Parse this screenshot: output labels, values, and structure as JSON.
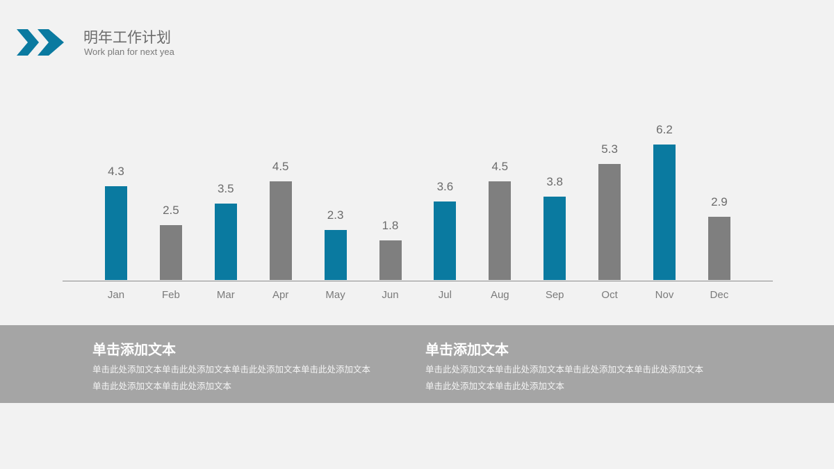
{
  "header": {
    "title": "明年工作计划",
    "subtitle": "Work plan for next yea",
    "logo_icon": "double-chevron-right-icon",
    "accent_color": "#0a7aa0"
  },
  "chart_data": {
    "type": "bar",
    "title": "",
    "xlabel": "",
    "ylabel": "",
    "categories": [
      "Jan",
      "Feb",
      "Mar",
      "Apr",
      "May",
      "Jun",
      "Jul",
      "Aug",
      "Sep",
      "Oct",
      "Nov",
      "Dec"
    ],
    "values": [
      4.3,
      2.5,
      3.5,
      4.5,
      2.3,
      1.8,
      3.6,
      4.5,
      3.8,
      5.3,
      6.2,
      2.9
    ],
    "value_labels": [
      "4.3",
      "2.5",
      "3.5",
      "4.5",
      "2.3",
      "1.8",
      "3.6",
      "4.5",
      "3.8",
      "5.3",
      "6.2",
      "2.9"
    ],
    "bar_colors": [
      "#0a7aa0",
      "#7f7f7f",
      "#0a7aa0",
      "#7f7f7f",
      "#0a7aa0",
      "#7f7f7f",
      "#0a7aa0",
      "#7f7f7f",
      "#0a7aa0",
      "#7f7f7f",
      "#0a7aa0",
      "#7f7f7f"
    ],
    "ylim": [
      0,
      7
    ],
    "grid": false,
    "legend": "none",
    "data_labels": true
  },
  "footer": {
    "blocks": [
      {
        "heading": "单击添加文本",
        "line1": "单击此处添加文本单击此处添加文本单击此处添加文本单击此处添加文本",
        "line2": "单击此处添加文本单击此处添加文本"
      },
      {
        "heading": "单击添加文本",
        "line1": "单击此处添加文本单击此处添加文本单击此处添加文本单击此处添加文本",
        "line2": "单击此处添加文本单击此处添加文本"
      }
    ]
  }
}
